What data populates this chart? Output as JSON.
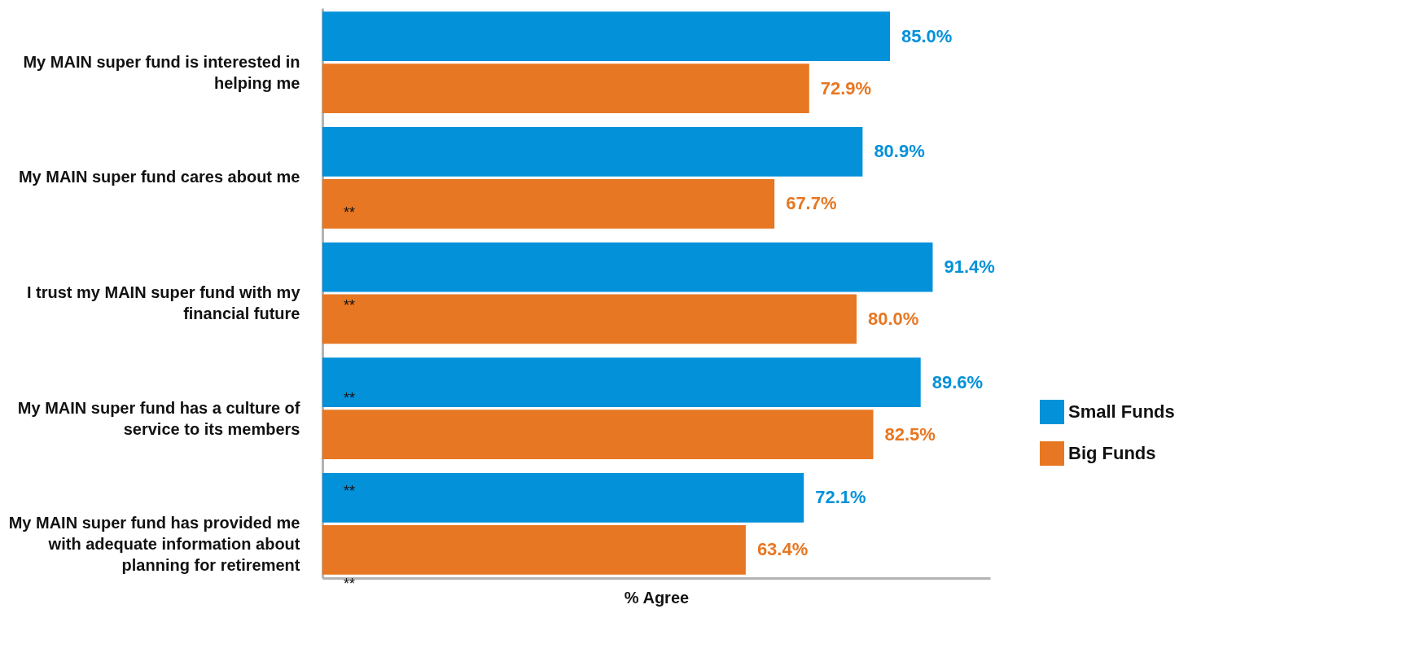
{
  "chart_data": {
    "type": "bar",
    "orientation": "horizontal",
    "xlabel": "% Agree",
    "xlim": [
      0,
      100
    ],
    "tick_labels": "y",
    "legend": "bottom right",
    "categories": [
      "My MAIN super fund is interested in helping me",
      "My MAIN super fund cares about me",
      "I trust my MAIN super fund with my financial future",
      "My MAIN super fund has a culture of service to its members",
      "My MAIN super fund has provided me with adequate information about planning for retirement"
    ],
    "series": [
      {
        "name": "Small Funds",
        "color": "#0391d9",
        "values": [
          85.0,
          80.9,
          91.4,
          89.6,
          72.1
        ],
        "value_labels": [
          "85.0%",
          "80.9%",
          "91.4%",
          "89.6%",
          "72.1%"
        ]
      },
      {
        "name": "Big Funds",
        "color": "#e77722",
        "values": [
          72.9,
          67.7,
          80.0,
          82.5,
          63.4
        ],
        "value_labels": [
          "72.9%",
          "67.7%",
          "80.0%",
          "82.5%",
          "63.4%"
        ]
      }
    ],
    "annotations": [
      "**",
      "**",
      "**",
      "**",
      "**"
    ]
  }
}
